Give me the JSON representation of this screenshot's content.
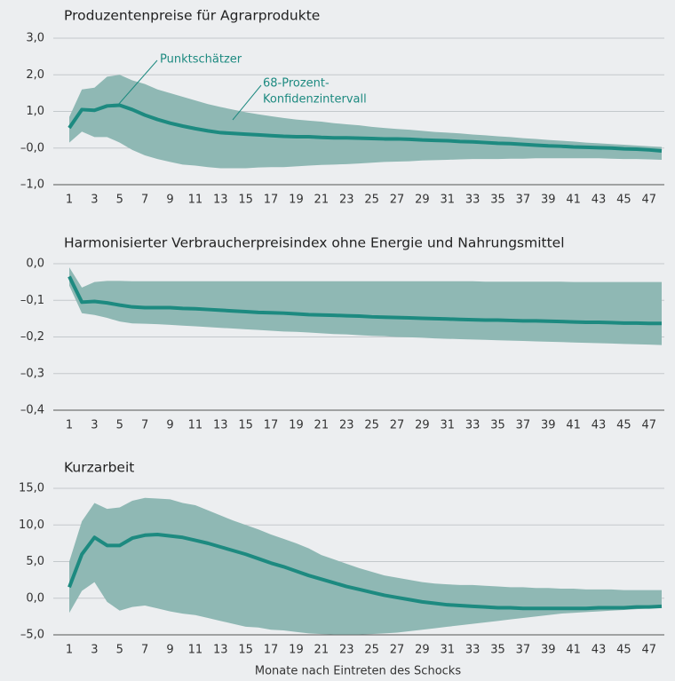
{
  "chart_data": [
    {
      "type": "line",
      "title": "Produzentenpreise für Agrarprodukte",
      "x": [
        1,
        2,
        3,
        4,
        5,
        6,
        7,
        8,
        9,
        10,
        11,
        12,
        13,
        14,
        15,
        16,
        17,
        18,
        19,
        20,
        21,
        22,
        23,
        24,
        25,
        26,
        27,
        28,
        29,
        30,
        31,
        32,
        33,
        34,
        35,
        36,
        37,
        38,
        39,
        40,
        41,
        42,
        43,
        44,
        45,
        46,
        47,
        48
      ],
      "xlim": [
        1,
        48
      ],
      "xticks": [
        1,
        3,
        5,
        7,
        9,
        11,
        13,
        15,
        17,
        19,
        21,
        23,
        25,
        27,
        29,
        31,
        33,
        35,
        37,
        39,
        41,
        43,
        45,
        47
      ],
      "ylim": [
        -1,
        3
      ],
      "yticks": [
        {
          "value": 3,
          "label": "3,0"
        },
        {
          "value": 2,
          "label": "2,0"
        },
        {
          "value": 1,
          "label": "1,0"
        },
        {
          "value": 0,
          "label": "–0,0"
        },
        {
          "value": -1,
          "label": "–1,0"
        }
      ],
      "grid": true,
      "line": {
        "color": "#1d8a80",
        "values": [
          0.55,
          1.05,
          1.03,
          1.15,
          1.17,
          1.05,
          0.9,
          0.78,
          0.68,
          0.6,
          0.53,
          0.47,
          0.42,
          0.4,
          0.38,
          0.36,
          0.34,
          0.32,
          0.31,
          0.31,
          0.29,
          0.28,
          0.28,
          0.27,
          0.26,
          0.25,
          0.25,
          0.24,
          0.22,
          0.21,
          0.2,
          0.18,
          0.17,
          0.15,
          0.13,
          0.12,
          0.1,
          0.08,
          0.06,
          0.05,
          0.03,
          0.02,
          0.01,
          0.0,
          -0.02,
          -0.03,
          -0.05,
          -0.08
        ]
      },
      "band": {
        "color": "#8fb8b4",
        "upper": [
          0.85,
          1.6,
          1.65,
          1.95,
          2.0,
          1.85,
          1.75,
          1.6,
          1.5,
          1.4,
          1.3,
          1.2,
          1.12,
          1.05,
          0.98,
          0.92,
          0.87,
          0.82,
          0.78,
          0.75,
          0.72,
          0.68,
          0.65,
          0.62,
          0.58,
          0.55,
          0.52,
          0.5,
          0.47,
          0.44,
          0.42,
          0.4,
          0.37,
          0.35,
          0.32,
          0.3,
          0.27,
          0.25,
          0.22,
          0.2,
          0.18,
          0.15,
          0.13,
          0.11,
          0.09,
          0.07,
          0.05,
          0.03
        ],
        "lower": [
          0.15,
          0.45,
          0.3,
          0.3,
          0.15,
          -0.05,
          -0.2,
          -0.3,
          -0.38,
          -0.45,
          -0.48,
          -0.52,
          -0.55,
          -0.55,
          -0.55,
          -0.53,
          -0.52,
          -0.52,
          -0.5,
          -0.48,
          -0.46,
          -0.45,
          -0.44,
          -0.42,
          -0.4,
          -0.38,
          -0.37,
          -0.36,
          -0.34,
          -0.33,
          -0.32,
          -0.31,
          -0.3,
          -0.3,
          -0.3,
          -0.29,
          -0.29,
          -0.28,
          -0.28,
          -0.28,
          -0.28,
          -0.28,
          -0.28,
          -0.29,
          -0.3,
          -0.3,
          -0.31,
          -0.32
        ]
      },
      "annotations": [
        {
          "text": [
            "Punktschätzer"
          ]
        },
        {
          "text": [
            "68-Prozent-",
            "Konfidenzintervall"
          ]
        }
      ]
    },
    {
      "type": "line",
      "title": "Harmonisierter Verbraucherpreisindex ohne Energie und Nahrungsmittel",
      "x": [
        1,
        2,
        3,
        4,
        5,
        6,
        7,
        8,
        9,
        10,
        11,
        12,
        13,
        14,
        15,
        16,
        17,
        18,
        19,
        20,
        21,
        22,
        23,
        24,
        25,
        26,
        27,
        28,
        29,
        30,
        31,
        32,
        33,
        34,
        35,
        36,
        37,
        38,
        39,
        40,
        41,
        42,
        43,
        44,
        45,
        46,
        47,
        48
      ],
      "xlim": [
        1,
        48
      ],
      "xticks": [
        1,
        3,
        5,
        7,
        9,
        11,
        13,
        15,
        17,
        19,
        21,
        23,
        25,
        27,
        29,
        31,
        33,
        35,
        37,
        39,
        41,
        43,
        45,
        47
      ],
      "ylim": [
        -0.4,
        0
      ],
      "yticks": [
        {
          "value": 0,
          "label": "0,0"
        },
        {
          "value": -0.1,
          "label": "–0,1"
        },
        {
          "value": -0.2,
          "label": "–0,2"
        },
        {
          "value": -0.3,
          "label": "–0,3"
        },
        {
          "value": -0.4,
          "label": "–0,4"
        }
      ],
      "grid": true,
      "line": {
        "color": "#1d8a80",
        "values": [
          -0.035,
          -0.105,
          -0.103,
          -0.107,
          -0.113,
          -0.118,
          -0.12,
          -0.12,
          -0.12,
          -0.122,
          -0.123,
          -0.125,
          -0.127,
          -0.129,
          -0.131,
          -0.133,
          -0.134,
          -0.135,
          -0.137,
          -0.139,
          -0.14,
          -0.141,
          -0.142,
          -0.143,
          -0.145,
          -0.146,
          -0.147,
          -0.148,
          -0.149,
          -0.15,
          -0.151,
          -0.152,
          -0.153,
          -0.154,
          -0.154,
          -0.155,
          -0.156,
          -0.156,
          -0.157,
          -0.158,
          -0.159,
          -0.16,
          -0.16,
          -0.161,
          -0.162,
          -0.162,
          -0.163,
          -0.163
        ]
      },
      "band": {
        "color": "#8fb8b4",
        "upper": [
          -0.01,
          -0.065,
          -0.05,
          -0.047,
          -0.047,
          -0.048,
          -0.048,
          -0.048,
          -0.048,
          -0.048,
          -0.048,
          -0.048,
          -0.048,
          -0.048,
          -0.048,
          -0.048,
          -0.048,
          -0.048,
          -0.048,
          -0.048,
          -0.048,
          -0.048,
          -0.048,
          -0.048,
          -0.048,
          -0.048,
          -0.048,
          -0.048,
          -0.048,
          -0.048,
          -0.048,
          -0.048,
          -0.048,
          -0.049,
          -0.049,
          -0.049,
          -0.049,
          -0.049,
          -0.049,
          -0.049,
          -0.05,
          -0.05,
          -0.05,
          -0.05,
          -0.05,
          -0.05,
          -0.05,
          -0.05
        ],
        "lower": [
          -0.06,
          -0.135,
          -0.14,
          -0.148,
          -0.158,
          -0.163,
          -0.164,
          -0.165,
          -0.167,
          -0.169,
          -0.171,
          -0.173,
          -0.175,
          -0.177,
          -0.179,
          -0.181,
          -0.183,
          -0.185,
          -0.186,
          -0.188,
          -0.19,
          -0.192,
          -0.193,
          -0.195,
          -0.197,
          -0.198,
          -0.2,
          -0.201,
          -0.202,
          -0.204,
          -0.205,
          -0.206,
          -0.207,
          -0.208,
          -0.209,
          -0.21,
          -0.211,
          -0.212,
          -0.213,
          -0.214,
          -0.215,
          -0.216,
          -0.217,
          -0.218,
          -0.219,
          -0.22,
          -0.221,
          -0.222
        ]
      }
    },
    {
      "type": "line",
      "title": "Kurzarbeit",
      "xlabel": "Monate nach Eintreten des Schocks",
      "x": [
        1,
        2,
        3,
        4,
        5,
        6,
        7,
        8,
        9,
        10,
        11,
        12,
        13,
        14,
        15,
        16,
        17,
        18,
        19,
        20,
        21,
        22,
        23,
        24,
        25,
        26,
        27,
        28,
        29,
        30,
        31,
        32,
        33,
        34,
        35,
        36,
        37,
        38,
        39,
        40,
        41,
        42,
        43,
        44,
        45,
        46,
        47,
        48
      ],
      "xlim": [
        1,
        48
      ],
      "xticks": [
        1,
        3,
        5,
        7,
        9,
        11,
        13,
        15,
        17,
        19,
        21,
        23,
        25,
        27,
        29,
        31,
        33,
        35,
        37,
        39,
        41,
        43,
        45,
        47
      ],
      "ylim": [
        -5,
        15
      ],
      "yticks": [
        {
          "value": 15,
          "label": "15,0"
        },
        {
          "value": 10,
          "label": "10,0"
        },
        {
          "value": 5,
          "label": "5,0"
        },
        {
          "value": 0,
          "label": "0,0"
        },
        {
          "value": -5,
          "label": "–5,0"
        }
      ],
      "grid": true,
      "line": {
        "color": "#1d8a80",
        "values": [
          1.5,
          6.0,
          8.3,
          7.2,
          7.2,
          8.2,
          8.6,
          8.7,
          8.5,
          8.3,
          7.9,
          7.5,
          7.0,
          6.5,
          6.0,
          5.4,
          4.8,
          4.3,
          3.7,
          3.1,
          2.6,
          2.1,
          1.6,
          1.2,
          0.8,
          0.4,
          0.1,
          -0.2,
          -0.5,
          -0.7,
          -0.9,
          -1.0,
          -1.1,
          -1.2,
          -1.3,
          -1.3,
          -1.4,
          -1.4,
          -1.4,
          -1.4,
          -1.4,
          -1.4,
          -1.3,
          -1.3,
          -1.3,
          -1.2,
          -1.2,
          -1.1
        ]
      },
      "band": {
        "color": "#8fb8b4",
        "upper": [
          5,
          10.5,
          13.0,
          12.2,
          12.4,
          13.3,
          13.7,
          13.6,
          13.5,
          13.0,
          12.7,
          12.0,
          11.3,
          10.6,
          10.0,
          9.4,
          8.7,
          8.1,
          7.5,
          6.8,
          5.9,
          5.3,
          4.7,
          4.1,
          3.6,
          3.1,
          2.8,
          2.5,
          2.2,
          2.0,
          1.9,
          1.8,
          1.8,
          1.7,
          1.6,
          1.5,
          1.5,
          1.4,
          1.4,
          1.3,
          1.3,
          1.2,
          1.2,
          1.2,
          1.1,
          1.1,
          1.1,
          1.1
        ],
        "lower": [
          -2.0,
          1.0,
          2.2,
          -0.5,
          -1.7,
          -1.2,
          -1.0,
          -1.4,
          -1.8,
          -2.1,
          -2.3,
          -2.7,
          -3.1,
          -3.5,
          -3.9,
          -4.0,
          -4.3,
          -4.4,
          -4.6,
          -4.8,
          -4.9,
          -4.95,
          -4.95,
          -4.95,
          -4.9,
          -4.8,
          -4.7,
          -4.5,
          -4.3,
          -4.1,
          -3.9,
          -3.7,
          -3.5,
          -3.3,
          -3.1,
          -2.9,
          -2.7,
          -2.5,
          -2.3,
          -2.1,
          -2.0,
          -1.9,
          -1.8,
          -1.7,
          -1.6,
          -1.5,
          -1.4,
          -1.3
        ]
      }
    }
  ]
}
